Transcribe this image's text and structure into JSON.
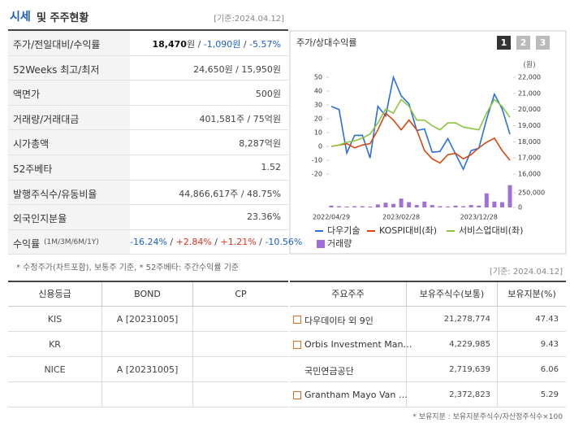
{
  "header": {
    "title_a": "시세",
    "title_b": "및 주주현황",
    "date": "[기준:2024.04.12]"
  },
  "quote_table": {
    "rows": [
      {
        "label": "주가/전일대비/수익률",
        "parts": [
          {
            "text": "18,470",
            "bold": true
          },
          {
            "text": "원 / "
          },
          {
            "text": "-1,090원",
            "color": "#1a5fd1"
          },
          {
            "text": " / "
          },
          {
            "text": "-5.57%",
            "color": "#1a5fd1"
          }
        ]
      },
      {
        "label": "52Weeks 최고/최저",
        "parts": [
          {
            "text": "24,650원 / 15,950원"
          }
        ]
      },
      {
        "label": "액면가",
        "parts": [
          {
            "text": "500원"
          }
        ]
      },
      {
        "label": "거래량/거래대금",
        "parts": [
          {
            "text": "401,581주 / 75억원"
          }
        ]
      },
      {
        "label": "시가총액",
        "parts": [
          {
            "text": "8,287억원"
          }
        ]
      },
      {
        "label": "52주베타",
        "parts": [
          {
            "text": "1.52"
          }
        ]
      },
      {
        "label": "발행주식수/유동비율",
        "parts": [
          {
            "text": "44,866,617주 / 48.75%"
          }
        ]
      },
      {
        "label": "외국인지분율",
        "parts": [
          {
            "text": "23.36%"
          }
        ]
      },
      {
        "label": "수익률",
        "label_small": "(1M/3M/6M/1Y)",
        "parts": [
          {
            "text": "-16.24%",
            "color": "#1a5fd1"
          },
          {
            "text": " / "
          },
          {
            "text": "+2.84%",
            "color": "#e0301e"
          },
          {
            "text": " / "
          },
          {
            "text": "+1.21%",
            "color": "#e0301e"
          },
          {
            "text": " / "
          },
          {
            "text": "-10.56%",
            "color": "#1a5fd1"
          }
        ]
      }
    ]
  },
  "note": "* 수정주가(차트포함), 보통주 기준, * 52주베타: 주간수익률 기준",
  "chart_data": {
    "type": "line",
    "title": "주가/상대수익률",
    "buttons": [
      "1",
      "2",
      "3"
    ],
    "y2_unit": "(원)",
    "categories": [
      "2022/04/29",
      null,
      null,
      null,
      null,
      null,
      null,
      null,
      null,
      "2023/02/28",
      null,
      null,
      null,
      null,
      null,
      null,
      null,
      null,
      null,
      "2023/12/28",
      null,
      null,
      null,
      null
    ],
    "ylim": [
      -20,
      50
    ],
    "yticks": [
      50,
      40,
      30,
      20,
      10,
      0,
      -10,
      -20
    ],
    "y2lim": [
      16000,
      22000
    ],
    "y2ticks": [
      {
        "value": 22000,
        "label": "22,000"
      },
      {
        "value": 21000,
        "label": "21,000"
      },
      {
        "value": 20000,
        "label": "20,000"
      },
      {
        "value": 19000,
        "label": "19,000"
      },
      {
        "value": 18000,
        "label": "18,000"
      },
      {
        "value": 17000,
        "label": "17,000"
      },
      {
        "value": 16000,
        "label": "16,000"
      }
    ],
    "y3lim": [
      0,
      400000
    ],
    "y3ticks": [
      {
        "value": 250000,
        "label": "250,000"
      },
      0
    ],
    "series": [
      {
        "name": "다우기술",
        "color": "#2a6fdb",
        "axis": "y2",
        "values": [
          20200,
          20000,
          17300,
          18400,
          18400,
          17000,
          20200,
          19600,
          22000,
          20850,
          20350,
          18700,
          18800,
          17350,
          17400,
          18200,
          17250,
          16300,
          17450,
          17600,
          19400,
          20950,
          20050,
          18470
        ]
      },
      {
        "name": "KOSPI대비(좌)",
        "color": "#d9480f",
        "axis": "y",
        "values": [
          0,
          1,
          2,
          -1,
          1,
          2,
          12,
          24,
          19,
          12,
          19,
          12,
          -3,
          -9,
          -12,
          -6,
          -5,
          -9,
          -6,
          -1,
          3,
          6,
          -3,
          -10
        ]
      },
      {
        "name": "서비스업대비(좌)",
        "color": "#8cc63f",
        "axis": "y",
        "values": [
          0,
          1,
          3,
          4,
          6,
          9,
          17,
          27,
          24,
          34,
          29,
          19,
          19,
          15,
          12,
          17,
          17,
          14,
          13,
          12,
          24,
          34,
          29,
          21
        ]
      },
      {
        "name": "거래량",
        "color": "#a070d8",
        "axis": "y3",
        "type": "bar",
        "values": [
          30000,
          20000,
          15000,
          20000,
          20000,
          15000,
          50000,
          80000,
          60000,
          150000,
          90000,
          40000,
          100000,
          40000,
          20000,
          15000,
          30000,
          20000,
          40000,
          30000,
          240000,
          100000,
          90000,
          380000
        ]
      }
    ]
  },
  "right_date": "[기준: 2024.04.12]",
  "rating_table": {
    "header": [
      "신용등급",
      "BOND",
      "CP"
    ],
    "rows": [
      [
        "KIS",
        "A [20231005]",
        null
      ],
      [
        "KR",
        null,
        null
      ],
      [
        "NICE",
        "A [20231005]",
        null
      ]
    ]
  },
  "holders_table": {
    "header": [
      "주요주주",
      "보유주식수(보통)",
      "보유지분(%)"
    ],
    "rows": [
      {
        "name": "다우데이타 외 9인",
        "shares": "21,278,774",
        "pct": "47.43",
        "expandable": true
      },
      {
        "name": "Orbis Investment Man…",
        "shares": "4,229,985",
        "pct": "9.43",
        "expandable": true
      },
      {
        "name": "국민연금공단",
        "shares": "2,719,639",
        "pct": "6.06",
        "expandable": false
      },
      {
        "name": "Grantham Mayo Van …",
        "shares": "2,372,823",
        "pct": "5.29",
        "expandable": true
      }
    ]
  },
  "holders_note": "* 보유지분 : 보유지분주식수/자산정주식수×100"
}
